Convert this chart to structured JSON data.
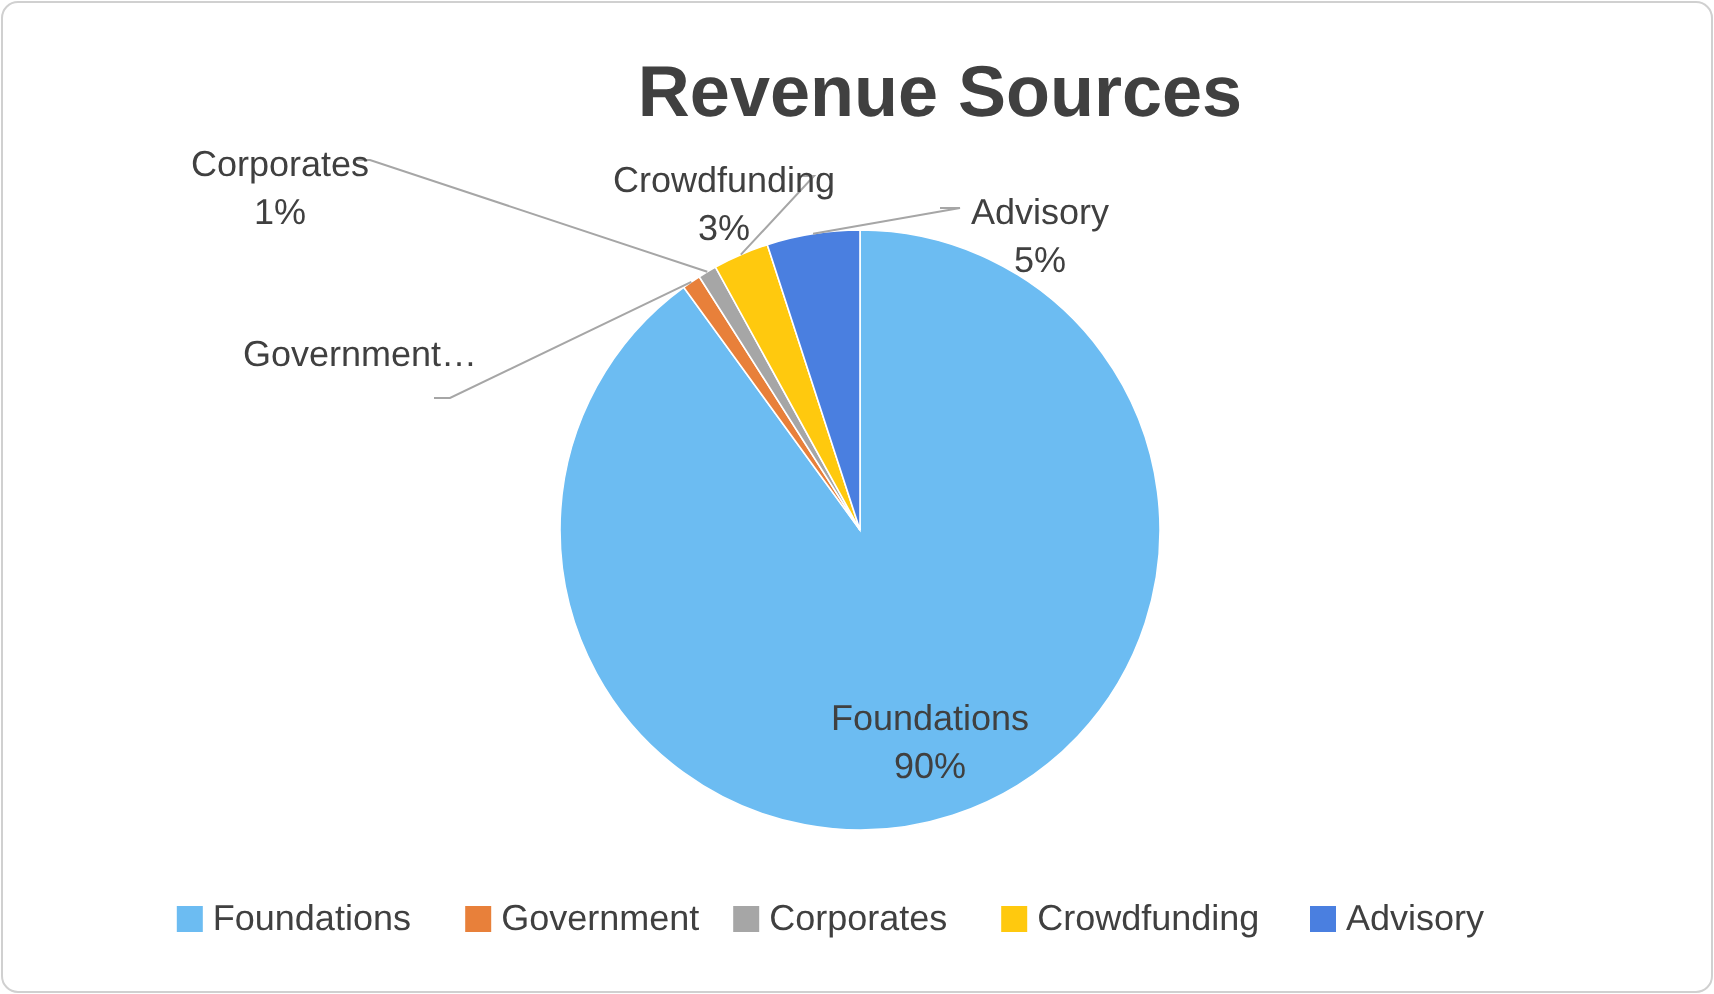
{
  "chart_data": {
    "type": "pie",
    "title": "Revenue Sources",
    "categories": [
      "Foundations",
      "Government",
      "Corporates",
      "Crowdfunding",
      "Advisory"
    ],
    "values": [
      90,
      1,
      1,
      3,
      5
    ],
    "value_labels": [
      "90%",
      "…",
      "1%",
      "3%",
      "5%"
    ],
    "colors": [
      "#6cbcf2",
      "#e8803a",
      "#a6a6a6",
      "#ffc90e",
      "#4a7fe0"
    ],
    "legend": "bottom"
  }
}
